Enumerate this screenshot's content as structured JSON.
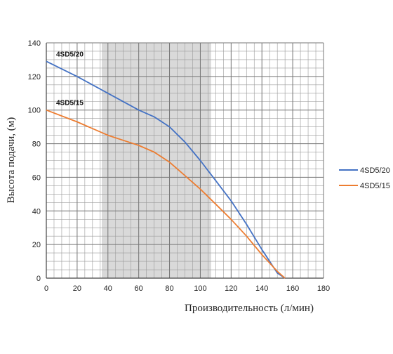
{
  "chart_data": {
    "type": "line",
    "xlabel": "Производительность (л/мин)",
    "ylabel": "Высота подачи, (м)",
    "xlim": [
      0,
      180
    ],
    "ylim": [
      0,
      140
    ],
    "x_ticks": [
      0,
      20,
      40,
      60,
      80,
      100,
      120,
      140,
      160,
      180
    ],
    "y_ticks": [
      0,
      20,
      40,
      60,
      80,
      100,
      120,
      140
    ],
    "grid": true,
    "minor_grid_step_x": 5,
    "minor_grid_step_y": 5,
    "shaded_x_range": [
      36,
      107
    ],
    "legend_position": "right",
    "series": [
      {
        "name": "4SD5/20",
        "color": "#4472c4",
        "points": [
          [
            0,
            129
          ],
          [
            20,
            120
          ],
          [
            40,
            110
          ],
          [
            60,
            100
          ],
          [
            70,
            96
          ],
          [
            80,
            90
          ],
          [
            90,
            81
          ],
          [
            100,
            70
          ],
          [
            110,
            58
          ],
          [
            120,
            46
          ],
          [
            130,
            32
          ],
          [
            140,
            17
          ],
          [
            150,
            3
          ],
          [
            155,
            0
          ]
        ]
      },
      {
        "name": "4SD5/15",
        "color": "#ed7d31",
        "points": [
          [
            0,
            100
          ],
          [
            20,
            93
          ],
          [
            40,
            85
          ],
          [
            50,
            82
          ],
          [
            60,
            79
          ],
          [
            70,
            75
          ],
          [
            80,
            69
          ],
          [
            90,
            61
          ],
          [
            100,
            53
          ],
          [
            110,
            44
          ],
          [
            120,
            35
          ],
          [
            130,
            25
          ],
          [
            140,
            14
          ],
          [
            150,
            4
          ],
          [
            155,
            0
          ]
        ]
      }
    ]
  }
}
